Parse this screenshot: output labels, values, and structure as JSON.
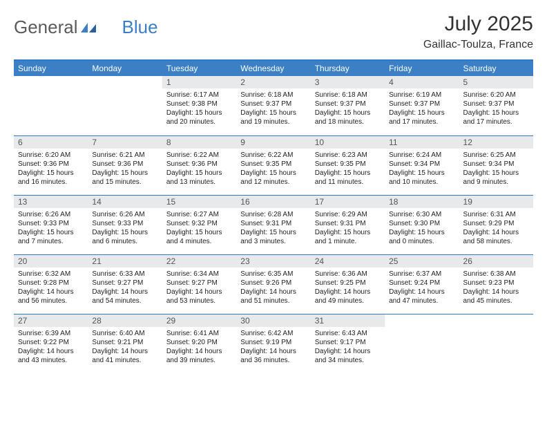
{
  "brand": {
    "part1": "General",
    "part2": "Blue"
  },
  "title": "July 2025",
  "location": "Gaillac-Toulza, France",
  "colors": {
    "header_bg": "#3b7fc4",
    "header_text": "#ffffff",
    "daynum_bg": "#e7e9ea",
    "border": "#2f79c2",
    "text": "#222222"
  },
  "day_headers": [
    "Sunday",
    "Monday",
    "Tuesday",
    "Wednesday",
    "Thursday",
    "Friday",
    "Saturday"
  ],
  "weeks": [
    [
      {
        "n": "",
        "l1": "",
        "l2": "",
        "l3": "",
        "l4": ""
      },
      {
        "n": "",
        "l1": "",
        "l2": "",
        "l3": "",
        "l4": ""
      },
      {
        "n": "1",
        "l1": "Sunrise: 6:17 AM",
        "l2": "Sunset: 9:38 PM",
        "l3": "Daylight: 15 hours",
        "l4": "and 20 minutes."
      },
      {
        "n": "2",
        "l1": "Sunrise: 6:18 AM",
        "l2": "Sunset: 9:37 PM",
        "l3": "Daylight: 15 hours",
        "l4": "and 19 minutes."
      },
      {
        "n": "3",
        "l1": "Sunrise: 6:18 AM",
        "l2": "Sunset: 9:37 PM",
        "l3": "Daylight: 15 hours",
        "l4": "and 18 minutes."
      },
      {
        "n": "4",
        "l1": "Sunrise: 6:19 AM",
        "l2": "Sunset: 9:37 PM",
        "l3": "Daylight: 15 hours",
        "l4": "and 17 minutes."
      },
      {
        "n": "5",
        "l1": "Sunrise: 6:20 AM",
        "l2": "Sunset: 9:37 PM",
        "l3": "Daylight: 15 hours",
        "l4": "and 17 minutes."
      }
    ],
    [
      {
        "n": "6",
        "l1": "Sunrise: 6:20 AM",
        "l2": "Sunset: 9:36 PM",
        "l3": "Daylight: 15 hours",
        "l4": "and 16 minutes."
      },
      {
        "n": "7",
        "l1": "Sunrise: 6:21 AM",
        "l2": "Sunset: 9:36 PM",
        "l3": "Daylight: 15 hours",
        "l4": "and 15 minutes."
      },
      {
        "n": "8",
        "l1": "Sunrise: 6:22 AM",
        "l2": "Sunset: 9:36 PM",
        "l3": "Daylight: 15 hours",
        "l4": "and 13 minutes."
      },
      {
        "n": "9",
        "l1": "Sunrise: 6:22 AM",
        "l2": "Sunset: 9:35 PM",
        "l3": "Daylight: 15 hours",
        "l4": "and 12 minutes."
      },
      {
        "n": "10",
        "l1": "Sunrise: 6:23 AM",
        "l2": "Sunset: 9:35 PM",
        "l3": "Daylight: 15 hours",
        "l4": "and 11 minutes."
      },
      {
        "n": "11",
        "l1": "Sunrise: 6:24 AM",
        "l2": "Sunset: 9:34 PM",
        "l3": "Daylight: 15 hours",
        "l4": "and 10 minutes."
      },
      {
        "n": "12",
        "l1": "Sunrise: 6:25 AM",
        "l2": "Sunset: 9:34 PM",
        "l3": "Daylight: 15 hours",
        "l4": "and 9 minutes."
      }
    ],
    [
      {
        "n": "13",
        "l1": "Sunrise: 6:26 AM",
        "l2": "Sunset: 9:33 PM",
        "l3": "Daylight: 15 hours",
        "l4": "and 7 minutes."
      },
      {
        "n": "14",
        "l1": "Sunrise: 6:26 AM",
        "l2": "Sunset: 9:33 PM",
        "l3": "Daylight: 15 hours",
        "l4": "and 6 minutes."
      },
      {
        "n": "15",
        "l1": "Sunrise: 6:27 AM",
        "l2": "Sunset: 9:32 PM",
        "l3": "Daylight: 15 hours",
        "l4": "and 4 minutes."
      },
      {
        "n": "16",
        "l1": "Sunrise: 6:28 AM",
        "l2": "Sunset: 9:31 PM",
        "l3": "Daylight: 15 hours",
        "l4": "and 3 minutes."
      },
      {
        "n": "17",
        "l1": "Sunrise: 6:29 AM",
        "l2": "Sunset: 9:31 PM",
        "l3": "Daylight: 15 hours",
        "l4": "and 1 minute."
      },
      {
        "n": "18",
        "l1": "Sunrise: 6:30 AM",
        "l2": "Sunset: 9:30 PM",
        "l3": "Daylight: 15 hours",
        "l4": "and 0 minutes."
      },
      {
        "n": "19",
        "l1": "Sunrise: 6:31 AM",
        "l2": "Sunset: 9:29 PM",
        "l3": "Daylight: 14 hours",
        "l4": "and 58 minutes."
      }
    ],
    [
      {
        "n": "20",
        "l1": "Sunrise: 6:32 AM",
        "l2": "Sunset: 9:28 PM",
        "l3": "Daylight: 14 hours",
        "l4": "and 56 minutes."
      },
      {
        "n": "21",
        "l1": "Sunrise: 6:33 AM",
        "l2": "Sunset: 9:27 PM",
        "l3": "Daylight: 14 hours",
        "l4": "and 54 minutes."
      },
      {
        "n": "22",
        "l1": "Sunrise: 6:34 AM",
        "l2": "Sunset: 9:27 PM",
        "l3": "Daylight: 14 hours",
        "l4": "and 53 minutes."
      },
      {
        "n": "23",
        "l1": "Sunrise: 6:35 AM",
        "l2": "Sunset: 9:26 PM",
        "l3": "Daylight: 14 hours",
        "l4": "and 51 minutes."
      },
      {
        "n": "24",
        "l1": "Sunrise: 6:36 AM",
        "l2": "Sunset: 9:25 PM",
        "l3": "Daylight: 14 hours",
        "l4": "and 49 minutes."
      },
      {
        "n": "25",
        "l1": "Sunrise: 6:37 AM",
        "l2": "Sunset: 9:24 PM",
        "l3": "Daylight: 14 hours",
        "l4": "and 47 minutes."
      },
      {
        "n": "26",
        "l1": "Sunrise: 6:38 AM",
        "l2": "Sunset: 9:23 PM",
        "l3": "Daylight: 14 hours",
        "l4": "and 45 minutes."
      }
    ],
    [
      {
        "n": "27",
        "l1": "Sunrise: 6:39 AM",
        "l2": "Sunset: 9:22 PM",
        "l3": "Daylight: 14 hours",
        "l4": "and 43 minutes."
      },
      {
        "n": "28",
        "l1": "Sunrise: 6:40 AM",
        "l2": "Sunset: 9:21 PM",
        "l3": "Daylight: 14 hours",
        "l4": "and 41 minutes."
      },
      {
        "n": "29",
        "l1": "Sunrise: 6:41 AM",
        "l2": "Sunset: 9:20 PM",
        "l3": "Daylight: 14 hours",
        "l4": "and 39 minutes."
      },
      {
        "n": "30",
        "l1": "Sunrise: 6:42 AM",
        "l2": "Sunset: 9:19 PM",
        "l3": "Daylight: 14 hours",
        "l4": "and 36 minutes."
      },
      {
        "n": "31",
        "l1": "Sunrise: 6:43 AM",
        "l2": "Sunset: 9:17 PM",
        "l3": "Daylight: 14 hours",
        "l4": "and 34 minutes."
      },
      {
        "n": "",
        "l1": "",
        "l2": "",
        "l3": "",
        "l4": ""
      },
      {
        "n": "",
        "l1": "",
        "l2": "",
        "l3": "",
        "l4": ""
      }
    ]
  ]
}
